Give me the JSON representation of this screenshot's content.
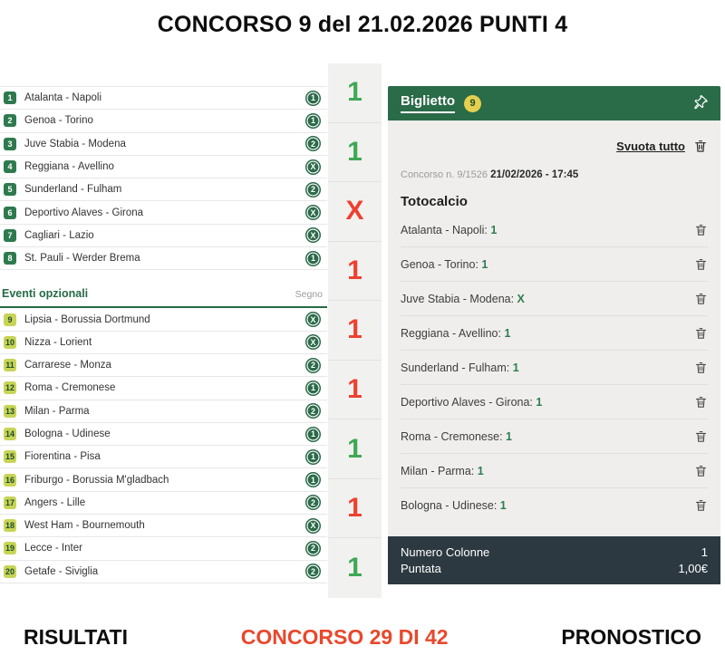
{
  "title": "CONCORSO 9 del 21.02.2026 PUNTI 4",
  "events": {
    "main": [
      {
        "n": "1",
        "name": "Atalanta - Napoli",
        "sign": "1"
      },
      {
        "n": "2",
        "name": "Genoa - Torino",
        "sign": "1"
      },
      {
        "n": "3",
        "name": "Juve Stabia - Modena",
        "sign": "2"
      },
      {
        "n": "4",
        "name": "Reggiana - Avellino",
        "sign": "X"
      },
      {
        "n": "5",
        "name": "Sunderland - Fulham",
        "sign": "2"
      },
      {
        "n": "6",
        "name": "Deportivo Alaves - Girona",
        "sign": "X"
      },
      {
        "n": "7",
        "name": "Cagliari - Lazio",
        "sign": "X"
      },
      {
        "n": "8",
        "name": "St. Pauli - Werder Brema",
        "sign": "1"
      }
    ],
    "optional_header": {
      "label": "Eventi opzionali",
      "column": "Segno"
    },
    "optional": [
      {
        "n": "9",
        "name": "Lipsia - Borussia Dortmund",
        "sign": "X"
      },
      {
        "n": "10",
        "name": "Nizza - Lorient",
        "sign": "X"
      },
      {
        "n": "11",
        "name": "Carrarese - Monza",
        "sign": "2"
      },
      {
        "n": "12",
        "name": "Roma - Cremonese",
        "sign": "1"
      },
      {
        "n": "13",
        "name": "Milan - Parma",
        "sign": "2"
      },
      {
        "n": "14",
        "name": "Bologna - Udinese",
        "sign": "1"
      },
      {
        "n": "15",
        "name": "Fiorentina - Pisa",
        "sign": "1"
      },
      {
        "n": "16",
        "name": "Friburgo - Borussia M'gladbach",
        "sign": "1"
      },
      {
        "n": "17",
        "name": "Angers - Lille",
        "sign": "2"
      },
      {
        "n": "18",
        "name": "West Ham - Bournemouth",
        "sign": "X"
      },
      {
        "n": "19",
        "name": "Lecce - Inter",
        "sign": "2"
      },
      {
        "n": "20",
        "name": "Getafe - Siviglia",
        "sign": "2"
      }
    ]
  },
  "results_strip": [
    {
      "value": "1",
      "status": "win"
    },
    {
      "value": "1",
      "status": "win"
    },
    {
      "value": "X",
      "status": "loss"
    },
    {
      "value": "1",
      "status": "loss"
    },
    {
      "value": "1",
      "status": "loss"
    },
    {
      "value": "1",
      "status": "loss"
    },
    {
      "value": "1",
      "status": "win"
    },
    {
      "value": "1",
      "status": "loss"
    },
    {
      "value": "1",
      "status": "win"
    }
  ],
  "ticket": {
    "tab_label": "Biglietto",
    "count_badge": "9",
    "clear_all_label": "Svuota tutto",
    "concorso_label": "Concorso n. 9/1526",
    "concorso_date": "21/02/2026 - 17:45",
    "game_title": "Totocalcio",
    "bets": [
      {
        "match": "Atalanta - Napoli",
        "sign": "1"
      },
      {
        "match": "Genoa - Torino",
        "sign": "1"
      },
      {
        "match": "Juve Stabia - Modena",
        "sign": "X"
      },
      {
        "match": "Reggiana - Avellino",
        "sign": "1"
      },
      {
        "match": "Sunderland - Fulham",
        "sign": "1"
      },
      {
        "match": "Deportivo Alaves - Girona",
        "sign": "1"
      },
      {
        "match": "Roma - Cremonese",
        "sign": "1"
      },
      {
        "match": "Milan - Parma",
        "sign": "1"
      },
      {
        "match": "Bologna - Udinese",
        "sign": "1"
      }
    ],
    "summary": [
      {
        "label": "Numero Colonne",
        "value": "1"
      },
      {
        "label": "Puntata",
        "value": "1,00€"
      }
    ]
  },
  "bottom_nav": {
    "left": "RISULTATI",
    "center": "CONCORSO 29 DI 42",
    "right": "PRONOSTICO"
  },
  "colors": {
    "dark_green": "#2a6b48",
    "win_green": "#3fa854",
    "loss_red": "#ee4130",
    "accent_orange": "#e8482c",
    "footer_dark": "#2d3941",
    "optional_badge_yellow": "#c8d455",
    "count_badge_yellow": "#e4cf4e"
  }
}
